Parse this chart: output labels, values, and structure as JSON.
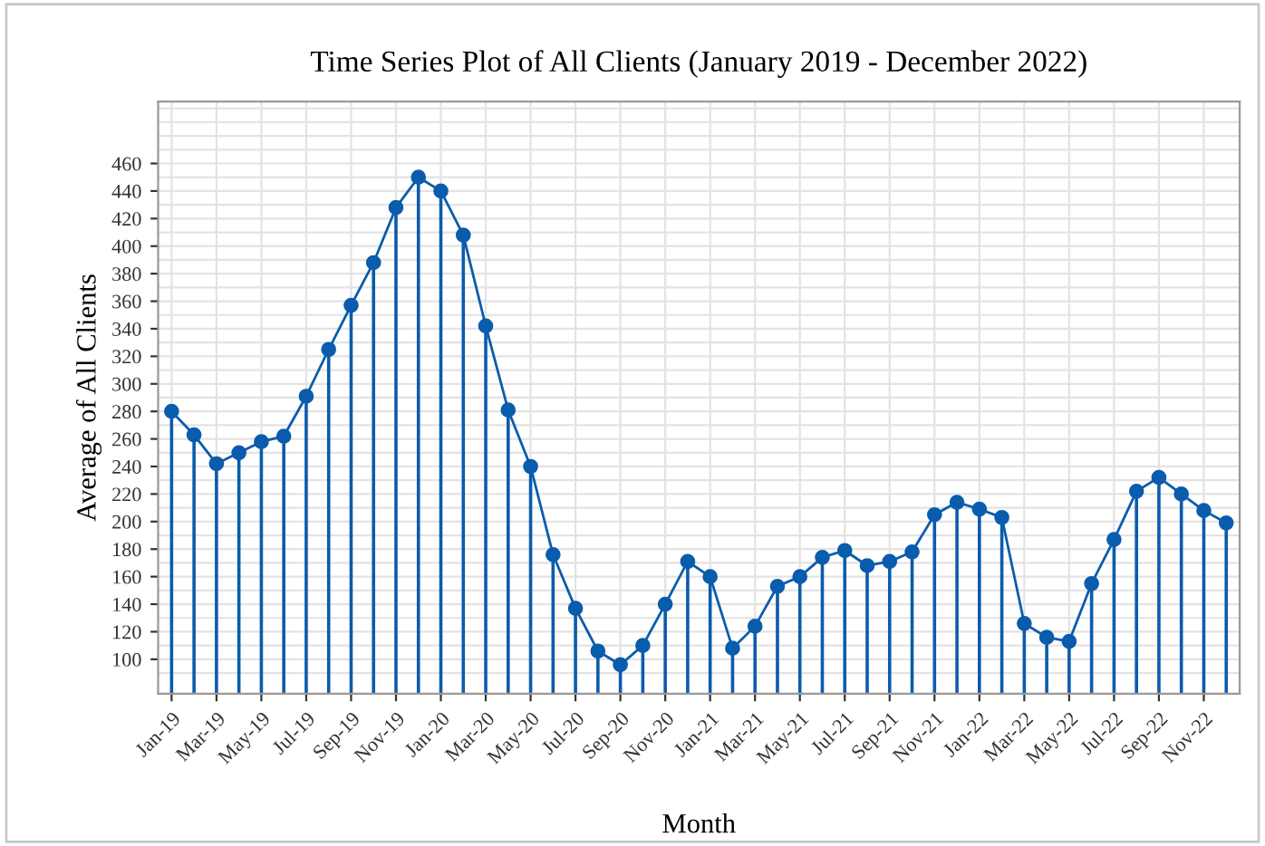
{
  "chart_data": {
    "type": "line",
    "title": "Time Series Plot of All Clients (January 2019 - December 2022)",
    "xlabel": "Month",
    "ylabel": "Average of All Clients",
    "categories": [
      "Jan-19",
      null,
      "Mar-19",
      null,
      "May-19",
      null,
      "Jul-19",
      null,
      "Sep-19",
      null,
      "Nov-19",
      null,
      "Jan-20",
      null,
      "Mar-20",
      null,
      "May-20",
      null,
      "Jul-20",
      null,
      "Sep-20",
      null,
      "Nov-20",
      null,
      "Jan-21",
      null,
      "Mar-21",
      null,
      "May-21",
      null,
      "Jul-21",
      null,
      "Sep-21",
      null,
      "Nov-21",
      null,
      "Jan-22",
      null,
      "Mar-22",
      null,
      "May-22",
      null,
      "Jul-22",
      null,
      "Sep-22",
      null,
      "Nov-22",
      null
    ],
    "series": [
      {
        "type": "lollipop",
        "color": "#0a5cad",
        "values": [
          280,
          263,
          242,
          250,
          258,
          262,
          291,
          325,
          357,
          388,
          428,
          450,
          440,
          408,
          342,
          281,
          240,
          176,
          137,
          106,
          96,
          110,
          140,
          171,
          160,
          108,
          124,
          153,
          160,
          174,
          179,
          168,
          171,
          178,
          205,
          214,
          209,
          203,
          126,
          116,
          113,
          155,
          187,
          222,
          232,
          220,
          208,
          199
        ]
      },
      {
        "marker": "none",
        "color": "#0a5cad",
        "values": [
          280,
          263,
          242,
          250,
          258,
          262,
          291,
          325,
          357,
          388,
          428,
          450,
          440,
          408,
          342,
          281,
          240,
          176,
          137,
          106,
          96,
          110,
          140,
          171,
          160,
          108,
          124,
          153,
          160,
          174,
          179,
          168,
          171,
          178,
          205,
          214,
          209,
          203,
          126,
          116,
          113,
          155,
          187,
          222,
          232,
          220,
          208,
          199
        ]
      }
    ],
    "marker": "circle",
    "line_style": "solid",
    "grid": true,
    "ylim": [
      75,
      505
    ],
    "yticks": [
      100,
      120,
      140,
      160,
      180,
      200,
      220,
      240,
      260,
      280,
      300,
      320,
      340,
      360,
      380,
      400,
      420,
      440,
      460
    ]
  }
}
